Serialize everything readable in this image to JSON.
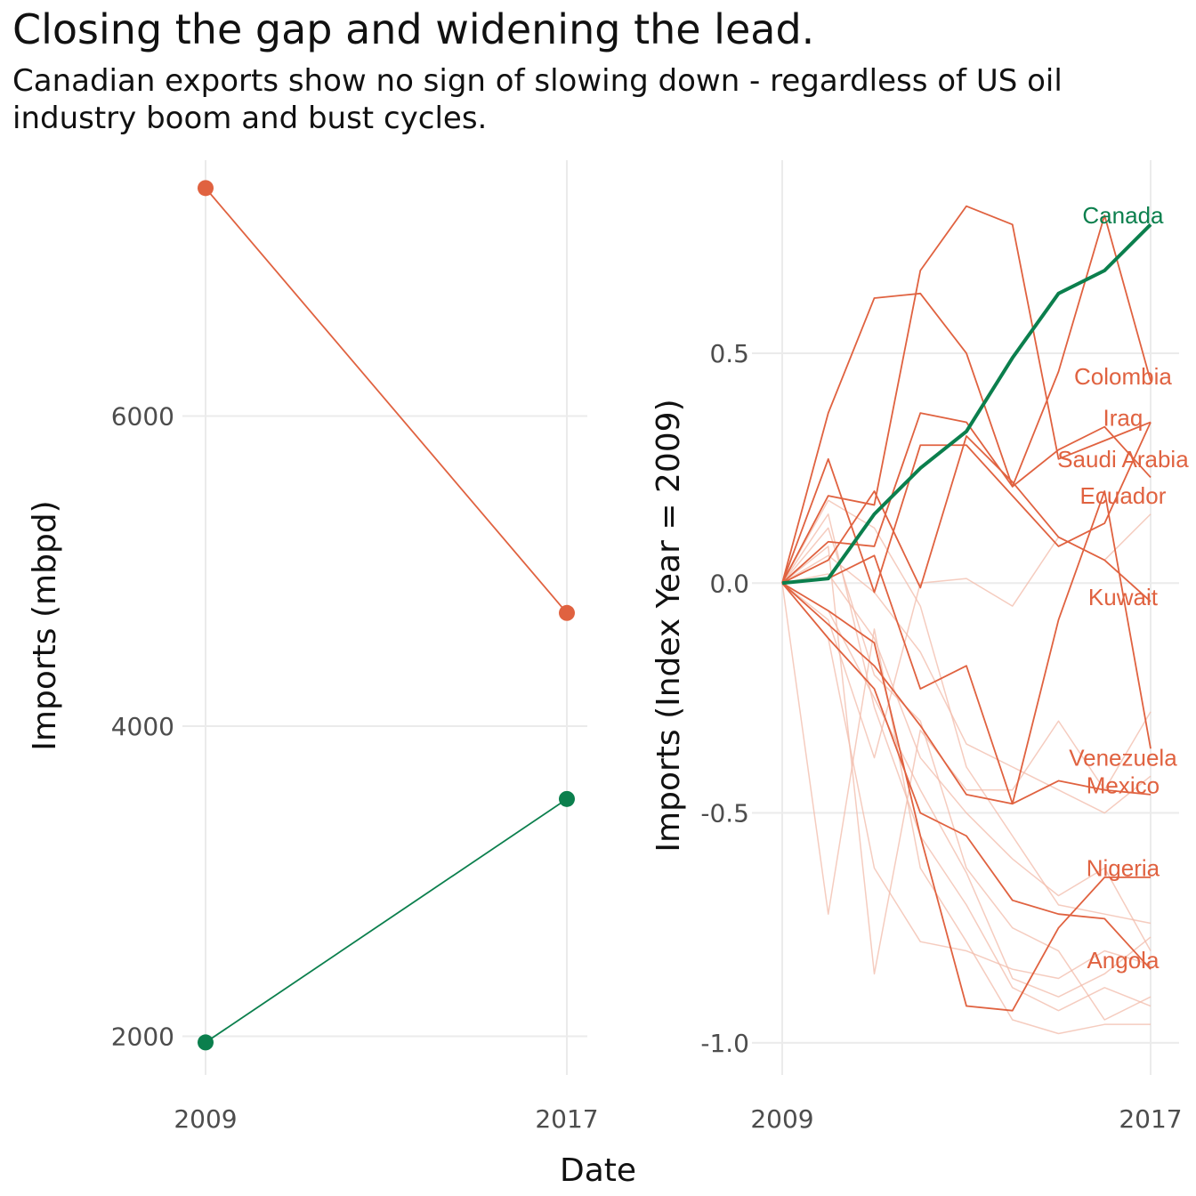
{
  "title": "Closing the gap and widening the lead.",
  "subtitle": "Canadian exports show no sign of slowing down - regardless of US oil industry boom and bust cycles.",
  "xlabel": "Date",
  "colors": {
    "canada": "#0b7f4d",
    "highlight": "#e06240",
    "faint": "#f1bba9",
    "grid": "#ebebeb"
  },
  "chart_data": [
    {
      "type": "line",
      "ylabel": "Imports (mbpd)",
      "x": [
        2009,
        2017
      ],
      "xticks": [
        "2009",
        "2017"
      ],
      "yticks": [
        "2000",
        "4000",
        "6000"
      ],
      "ylim": [
        1750,
        7650
      ],
      "series": [
        {
          "values": [
            7470,
            4730
          ],
          "color": "#e06240"
        },
        {
          "values": [
            1960,
            3530
          ],
          "color": "#0b7f4d"
        }
      ]
    },
    {
      "type": "line",
      "ylabel": "Imports (Index Year = 2009)",
      "x": [
        2009,
        2010,
        2011,
        2012,
        2013,
        2014,
        2015,
        2016,
        2017
      ],
      "xticks": [
        "2009",
        "2017"
      ],
      "yticks": [
        "-1.0",
        "-0.5",
        "0.0",
        "0.5"
      ],
      "ylim": [
        -1.07,
        0.92
      ],
      "canada": {
        "name": "Canada",
        "values": [
          0,
          0.01,
          0.15,
          0.25,
          0.33,
          0.49,
          0.63,
          0.68,
          0.78
        ]
      },
      "series": [
        {
          "name": "Colombia",
          "values": [
            0,
            0.37,
            0.62,
            0.63,
            0.5,
            0.21,
            0.46,
            0.8,
            0.44
          ]
        },
        {
          "name": "Iraq",
          "values": [
            0,
            0.19,
            0.17,
            0.68,
            0.82,
            0.78,
            0.27,
            0.31,
            0.35
          ]
        },
        {
          "name": "Saudi Arabia",
          "values": [
            0,
            0.09,
            0.08,
            0.37,
            0.35,
            0.21,
            0.29,
            0.34,
            0.23
          ]
        },
        {
          "name": "Ecuador",
          "values": [
            0,
            0.27,
            -0.02,
            0.3,
            0.3,
            0.19,
            0.08,
            0.13,
            0.35
          ]
        },
        {
          "name": "Kuwait",
          "values": [
            0,
            0.05,
            0.2,
            -0.01,
            0.32,
            0.22,
            0.1,
            0.05,
            -0.04
          ]
        },
        {
          "name": "Venezuela",
          "values": [
            0,
            -0.09,
            -0.18,
            -0.31,
            -0.46,
            -0.48,
            -0.43,
            -0.45,
            -0.46
          ]
        },
        {
          "name": "Mexico",
          "values": [
            0,
            -0.12,
            -0.23,
            -0.5,
            -0.55,
            -0.69,
            -0.72,
            -0.73,
            -0.84
          ]
        },
        {
          "name": "Nigeria",
          "values": [
            0,
            -0.06,
            -0.13,
            -0.55,
            -0.92,
            -0.93,
            -0.75,
            -0.64,
            -0.64
          ]
        },
        {
          "name": "Angola",
          "values": [
            0,
            0.01,
            0.06,
            -0.23,
            -0.18,
            -0.48,
            -0.08,
            0.2,
            -0.36
          ]
        }
      ],
      "labels": [
        {
          "text": "Canada",
          "x": 2016.4,
          "y": 0.8,
          "color": "#0b7f4d"
        },
        {
          "text": "Colombia",
          "x": 2016.4,
          "y": 0.45,
          "color": "#e06240"
        },
        {
          "text": "Iraq",
          "x": 2016.4,
          "y": 0.36,
          "color": "#e06240"
        },
        {
          "text": "Saudi Arabia",
          "x": 2016.4,
          "y": 0.27,
          "color": "#e06240"
        },
        {
          "text": "Ecuador",
          "x": 2016.4,
          "y": 0.19,
          "color": "#e06240"
        },
        {
          "text": "Kuwait",
          "x": 2016.4,
          "y": -0.03,
          "color": "#e06240"
        },
        {
          "text": "Venezuela",
          "x": 2016.4,
          "y": -0.38,
          "color": "#e06240"
        },
        {
          "text": "Mexico",
          "x": 2016.4,
          "y": -0.44,
          "color": "#e06240"
        },
        {
          "text": "Nigeria",
          "x": 2016.4,
          "y": -0.62,
          "color": "#e06240"
        },
        {
          "text": "Angola",
          "x": 2016.4,
          "y": -0.82,
          "color": "#e06240"
        }
      ],
      "faint_series": [
        [
          0,
          0.18,
          0.12,
          -0.05,
          -0.4,
          -0.55,
          -0.7,
          -0.72,
          -0.74
        ],
        [
          0,
          -0.06,
          -0.25,
          -0.45,
          -0.63,
          -0.86,
          -0.9,
          -0.85,
          -0.77
        ],
        [
          0,
          0.15,
          -0.27,
          -0.55,
          -0.7,
          -0.88,
          -0.93,
          -0.88,
          -0.92
        ],
        [
          0,
          -0.72,
          -0.1,
          -0.62,
          -0.78,
          -0.95,
          -0.98,
          -0.96,
          -0.96
        ],
        [
          0,
          0.08,
          -0.85,
          -0.32,
          -0.45,
          -0.45,
          -0.3,
          -0.45,
          -0.28
        ],
        [
          0,
          -0.08,
          -0.38,
          0.0,
          0.01,
          -0.05,
          0.1,
          0.05,
          0.15
        ],
        [
          0,
          0.12,
          -0.2,
          -0.3,
          -0.62,
          -0.75,
          -0.8,
          -0.95,
          -0.9
        ],
        [
          0,
          0.02,
          -0.12,
          -0.38,
          -0.5,
          -0.6,
          -0.68,
          -0.62,
          -0.8
        ],
        [
          0,
          -0.12,
          -0.62,
          -0.78,
          -0.8,
          -0.84,
          -0.86,
          -0.8,
          -0.83
        ],
        [
          0,
          0.06,
          -0.02,
          -0.15,
          -0.35,
          -0.4,
          -0.45,
          -0.5,
          -0.42
        ]
      ]
    }
  ]
}
